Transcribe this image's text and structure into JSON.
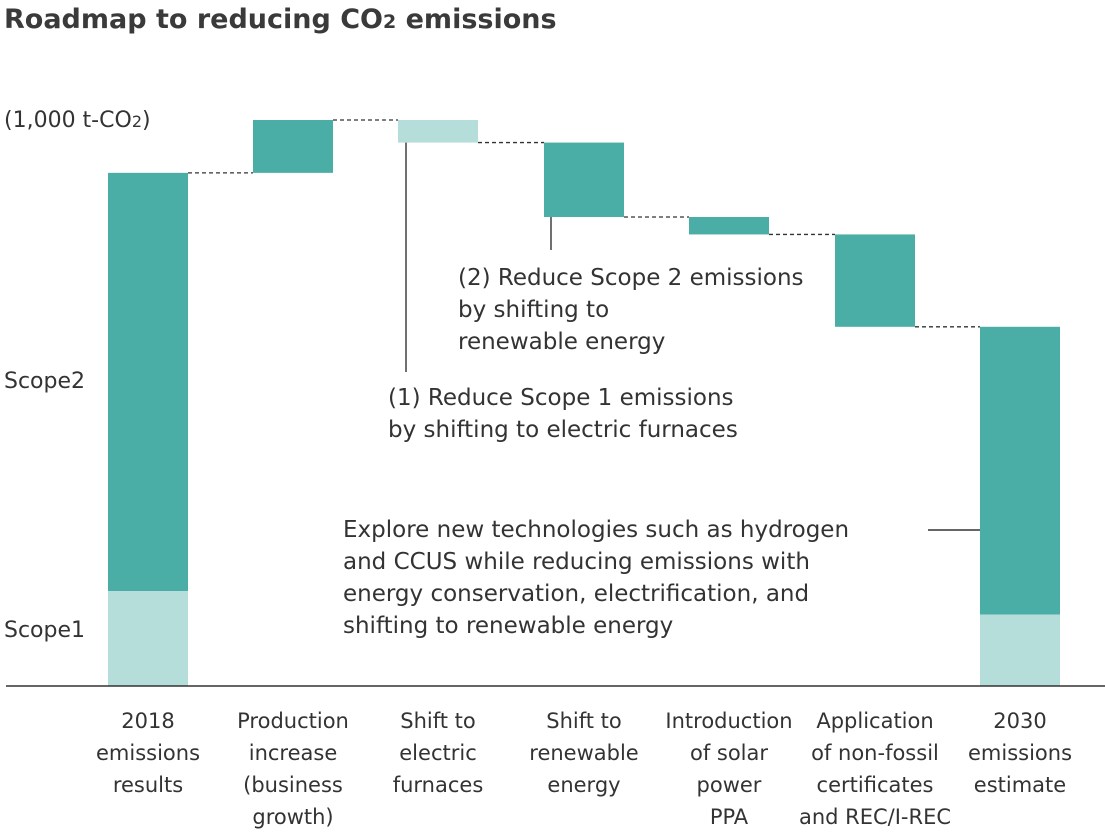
{
  "chart_data": {
    "type": "bar",
    "subtype": "waterfall",
    "title_main": "Roadmap to reducing CO",
    "title_sub": "2",
    "title_tail": " emissions",
    "unit_main": "(1,000 t-CO",
    "unit_sub": "2",
    "unit_tail": ")",
    "legend_labels": {
      "scope2": "Scope2",
      "scope1": "Scope1"
    },
    "categories": [
      [
        "2018",
        "emissions",
        "results"
      ],
      [
        "Production",
        "increase",
        "(business",
        "growth)"
      ],
      [
        "Shift to",
        "electric",
        "furnaces"
      ],
      [
        "Shift to",
        "renewable",
        "energy"
      ],
      [
        "Introduction",
        "of solar",
        "power",
        "PPA"
      ],
      [
        "Application",
        "of non-fossil",
        "certificates",
        "and REC/I-REC"
      ],
      [
        "2030",
        "emissions",
        "estimate"
      ]
    ],
    "bars": [
      {
        "kind": "total",
        "scope1": 18.5,
        "scope2": 81.5
      },
      {
        "kind": "increase",
        "from": 100,
        "to": 110.3,
        "scope": "scope2"
      },
      {
        "kind": "decrease",
        "from": 110.3,
        "to": 105.9,
        "scope": "scope1"
      },
      {
        "kind": "decrease",
        "from": 105.9,
        "to": 91.4,
        "scope": "scope2"
      },
      {
        "kind": "decrease",
        "from": 91.4,
        "to": 88,
        "scope": "scope2"
      },
      {
        "kind": "decrease",
        "from": 88,
        "to": 70,
        "scope": "scope2"
      },
      {
        "kind": "total",
        "scope1": 13.9,
        "scope2": 56.1
      }
    ],
    "ylim": [
      0,
      110.3
    ],
    "colors": {
      "scope2": "#4aaea6",
      "scope1": "#b5ddd9"
    },
    "annotations": [
      {
        "id": "scope1-reduction",
        "lines": [
          "(1) Reduce Scope 1 emissions",
          "by shifting to electric furnaces"
        ]
      },
      {
        "id": "scope2-reduction",
        "lines": [
          "(2) Reduce Scope 2 emissions",
          "by shifting to",
          "renewable energy"
        ]
      },
      {
        "id": "new-tech",
        "lines": [
          "Explore new technologies such as hydrogen",
          "and CCUS while reducing emissions with",
          "energy conservation, electrification, and",
          "shifting to renewable energy"
        ]
      }
    ]
  }
}
